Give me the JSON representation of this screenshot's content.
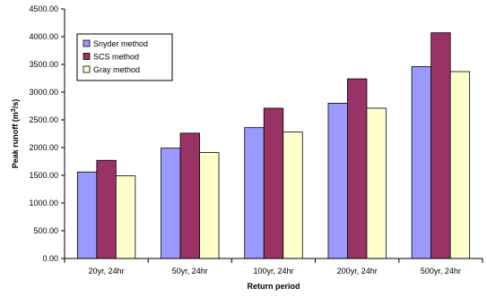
{
  "chart_data": {
    "type": "bar",
    "title": "",
    "xlabel": "Return period",
    "ylabel": "Peak runoff (m",
    "ylabel_sup": "3",
    "ylabel_tail": "/s)",
    "ylim": [
      0,
      4500
    ],
    "ytick_step": 500,
    "ytick_labels": [
      "0.00",
      "500.00",
      "1000.00",
      "1500.00",
      "2000.00",
      "2500.00",
      "3000.00",
      "3500.00",
      "4000.00",
      "4500.00"
    ],
    "categories": [
      "20yr, 24hr",
      "50yr, 24hr",
      "100yr, 24hr",
      "200yr, 24hr",
      "500yr, 24hr"
    ],
    "series": [
      {
        "name": "Snyder method",
        "color": "#9999ff",
        "values": [
          1560,
          1990,
          2360,
          2800,
          3460
        ]
      },
      {
        "name": "SCS method",
        "color": "#993366",
        "values": [
          1770,
          2260,
          2710,
          3240,
          4070
        ]
      },
      {
        "name": "Gray method",
        "color": "#ffffcc",
        "values": [
          1490,
          1910,
          2280,
          2710,
          3370
        ]
      }
    ],
    "grid": false,
    "legend_position": "top-left"
  }
}
